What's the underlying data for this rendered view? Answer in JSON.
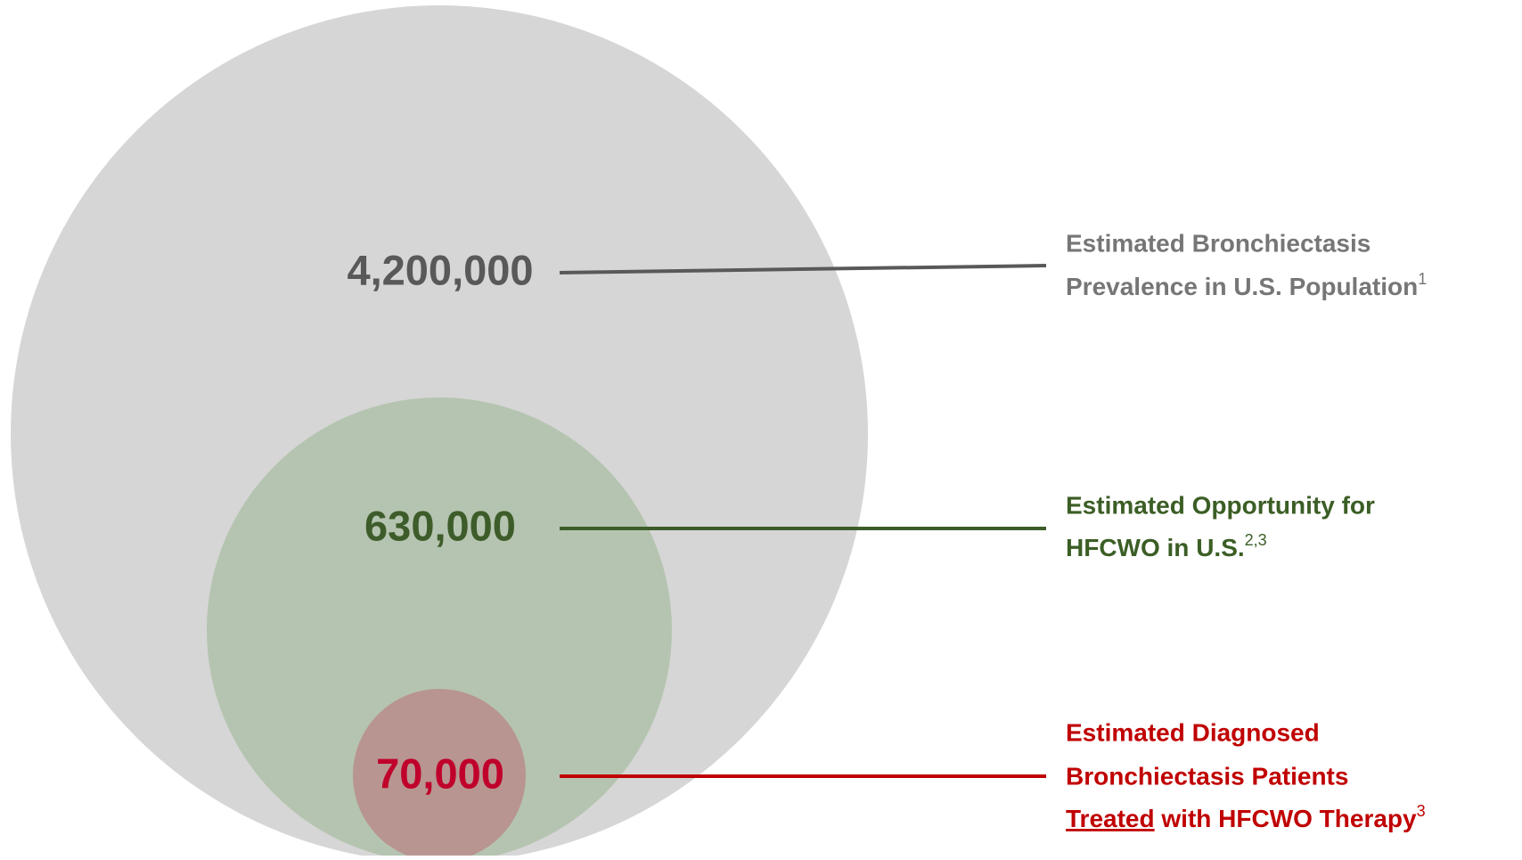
{
  "items": [
    {
      "number": "4,200,000",
      "label_lines": [
        "Estimated Bronchiectasis",
        "Prevalence in U.S. Population"
      ],
      "ref": "1"
    },
    {
      "number": "630,000",
      "label_lines": [
        "Estimated Opportunity for",
        "HFCWO in U.S."
      ],
      "ref": "2,3"
    },
    {
      "number": "70,000",
      "label_lines": [
        "Estimated Diagnosed",
        "Bronchiectasis Patients"
      ],
      "label_underlined": "Treated",
      "label_rest": " with HFCWO Therapy",
      "ref": "3"
    }
  ]
}
